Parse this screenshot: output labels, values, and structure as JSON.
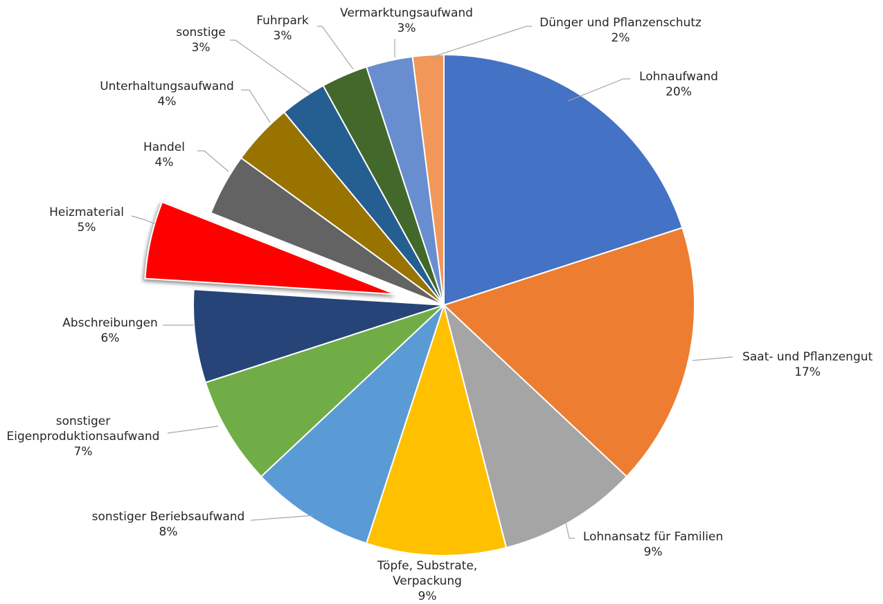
{
  "chart_data": {
    "type": "pie",
    "title": "",
    "start_angle_deg": 0,
    "direction": "clockwise",
    "exploded": [
      "Heizmaterial"
    ],
    "slices": [
      {
        "label": "Lohnaufwand",
        "value": 20,
        "value_label": "20%",
        "color": "#4472C4"
      },
      {
        "label": "Saat- und Pflanzengut",
        "value": 17,
        "value_label": "17%",
        "color": "#ED7D31"
      },
      {
        "label": "Lohnansatz für Familien",
        "value": 9,
        "value_label": "9%",
        "color": "#A5A5A5"
      },
      {
        "label": "Töpfe, Substrate, Verpackung",
        "label_lines": [
          "Töpfe, Substrate,",
          "Verpackung"
        ],
        "value": 9,
        "value_label": "9%",
        "color": "#FFC000"
      },
      {
        "label": "sonstiger Beriebsaufwand",
        "value": 8,
        "value_label": "8%",
        "color": "#5B9BD5"
      },
      {
        "label": "sonstiger Eigenproduktionsaufwand",
        "label_lines": [
          "sonstiger",
          "Eigenproduktionsaufwand"
        ],
        "value": 7,
        "value_label": "7%",
        "color": "#70AD47"
      },
      {
        "label": "Abschreibungen",
        "value": 6,
        "value_label": "6%",
        "color": "#264478"
      },
      {
        "label": "Heizmaterial",
        "value": 5,
        "value_label": "5%",
        "color": "#FF0000"
      },
      {
        "label": "Handel",
        "value": 4,
        "value_label": "4%",
        "color": "#636363"
      },
      {
        "label": "Unterhaltungsaufwand",
        "value": 4,
        "value_label": "4%",
        "color": "#997300"
      },
      {
        "label": "sonstige",
        "value": 3,
        "value_label": "3%",
        "color": "#255E91"
      },
      {
        "label": "Fuhrpark",
        "value": 3,
        "value_label": "3%",
        "color": "#43682B"
      },
      {
        "label": "Vermarktungsaufwand",
        "value": 3,
        "value_label": "3%",
        "color": "#698ED0"
      },
      {
        "label": "Dünger und Pflanzenschutz",
        "value": 2,
        "value_label": "2%",
        "color": "#F1975A"
      }
    ]
  }
}
